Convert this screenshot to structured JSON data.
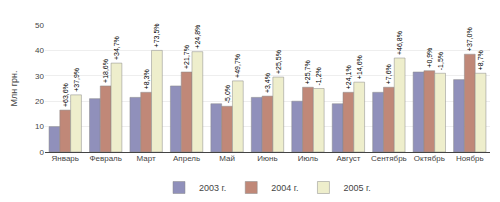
{
  "chart_data": {
    "type": "bar",
    "categories": [
      "Январь",
      "Февраль",
      "Март",
      "Апрель",
      "Май",
      "Июнь",
      "Июль",
      "Август",
      "Сентябрь",
      "Октябрь",
      "Ноябрь"
    ],
    "series": [
      {
        "name": "2003 г.",
        "color": "#9090bb",
        "values": [
          10.0,
          21.0,
          21.5,
          26.0,
          19.0,
          21.5,
          20.0,
          19.0,
          23.5,
          31.5,
          28.5
        ]
      },
      {
        "name": "2004 г.",
        "color": "#c08878",
        "values": [
          16.5,
          26.0,
          23.5,
          31.5,
          18.0,
          22.0,
          25.5,
          23.5,
          25.5,
          32.0,
          38.5
        ],
        "annotations": [
          "+63,6%",
          "+18,6%",
          "+8,3%",
          "+21,7%",
          "-5,0%",
          "+3,4%",
          "+25,7%",
          "+24,1%",
          "+7,6%",
          "+0,9%",
          "+37,0%"
        ]
      },
      {
        "name": "2005 г.",
        "color": "#eeeecc",
        "values": [
          22.5,
          35.0,
          40.0,
          39.5,
          28.0,
          29.5,
          25.0,
          27.5,
          37.0,
          31.0,
          31.0
        ],
        "annotations": [
          "+37,9%",
          "+34,7%",
          "+73,5%",
          "+24,8%",
          "+49,7%",
          "+25,5%",
          "-1,2%",
          "+14,6%",
          "+46,8%",
          "-1,5%",
          "+8,7%"
        ]
      }
    ],
    "ylabel": "Млн грн.",
    "ylim": [
      0,
      50
    ],
    "yticks": [
      0,
      10,
      20,
      30,
      40,
      50
    ],
    "grid": true,
    "legend": "bottom"
  }
}
